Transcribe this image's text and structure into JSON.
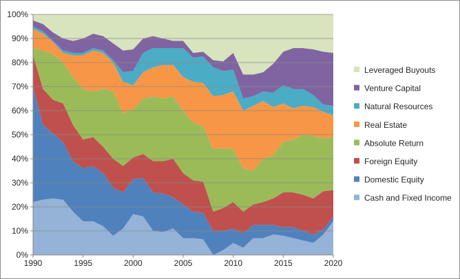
{
  "chart_data": {
    "type": "area",
    "stacked": true,
    "normalized": true,
    "title": "",
    "xlabel": "",
    "ylabel": "",
    "xlim": [
      1990,
      2020
    ],
    "ylim": [
      0,
      100
    ],
    "x_ticks": [
      "1990",
      "1995",
      "2000",
      "2005",
      "2010",
      "2015",
      "2020"
    ],
    "y_ticks": [
      "0%",
      "10%",
      "20%",
      "30%",
      "40%",
      "50%",
      "60%",
      "70%",
      "80%",
      "90%",
      "100%"
    ],
    "grid": "horizontal",
    "legend_position": "right",
    "x": [
      1990,
      1991,
      1992,
      1993,
      1994,
      1995,
      1996,
      1997,
      1998,
      1999,
      2000,
      2001,
      2002,
      2003,
      2004,
      2005,
      2006,
      2007,
      2008,
      2009,
      2010,
      2011,
      2012,
      2013,
      2014,
      2015,
      2016,
      2017,
      2018,
      2019,
      2020
    ],
    "series": [
      {
        "name": "Cash and Fixed Income",
        "color": "#95b3d7",
        "values": [
          22,
          23,
          23.5,
          23,
          18,
          14,
          14,
          12,
          8,
          11,
          17,
          16,
          10,
          9.5,
          11,
          7,
          7,
          6.5,
          0,
          2,
          5,
          3,
          7,
          7,
          8.5,
          8,
          7,
          6,
          5,
          8.5,
          14
        ]
      },
      {
        "name": "Domestic Equity",
        "color": "#4f81bd",
        "values": [
          48,
          31,
          27,
          24,
          21,
          22,
          23,
          22,
          20,
          15,
          14.5,
          16,
          16,
          16,
          13,
          14,
          11,
          11,
          10,
          8,
          6,
          6,
          5.5,
          5.5,
          4,
          3.5,
          4.5,
          4,
          3.5,
          2,
          2
        ]
      },
      {
        "name": "Foreign Equity",
        "color": "#c0504d",
        "values": [
          13,
          15,
          14,
          16,
          15,
          12,
          12,
          11,
          12,
          11,
          9,
          10,
          13,
          13.5,
          16,
          13,
          13,
          13,
          8,
          9.5,
          11,
          9,
          8.5,
          9.5,
          11,
          14.5,
          14.5,
          15,
          15,
          16,
          11
        ]
      },
      {
        "name": "Absolute Return",
        "color": "#9bbb59",
        "values": [
          3,
          16,
          19,
          17,
          20,
          21,
          19,
          24,
          28,
          22,
          20,
          23,
          27,
          26,
          26,
          26,
          24,
          23,
          26,
          25,
          22,
          18,
          14,
          18,
          18,
          21,
          22,
          25,
          26,
          22,
          22
        ]
      },
      {
        "name": "Real Estate",
        "color": "#f79646",
        "values": [
          8,
          7,
          5,
          4,
          9,
          14,
          17,
          15,
          12,
          13,
          10,
          11,
          12,
          14,
          13,
          14,
          17,
          18,
          22,
          22,
          24,
          24,
          27,
          24,
          20,
          16,
          13,
          12,
          12,
          11,
          9
        ]
      },
      {
        "name": "Natural Resources",
        "color": "#4bacc6",
        "values": [
          1,
          1,
          0.5,
          1,
          1,
          1,
          1,
          1,
          1,
          4,
          6,
          8,
          8,
          7,
          7,
          12,
          10,
          11,
          12,
          10,
          9,
          5,
          4,
          4,
          6,
          7.5,
          8,
          7,
          5,
          3,
          4
        ]
      },
      {
        "name": "Venture Capital",
        "color": "#8064a2",
        "values": [
          2.5,
          3,
          3.5,
          5,
          5,
          6,
          6,
          6,
          7,
          9,
          9,
          6,
          5,
          4,
          3,
          3,
          2,
          2,
          3,
          4,
          7,
          10,
          9,
          8,
          12,
          14,
          17,
          17,
          19,
          22,
          22
        ]
      },
      {
        "name": "Leveraged Buyouts",
        "color": "#d7e4bd",
        "values": [
          2.5,
          4,
          7.5,
          10,
          11,
          10,
          8,
          9,
          12,
          15,
          14.5,
          10,
          9,
          10,
          11,
          11,
          16,
          15.5,
          19,
          19.5,
          16,
          25,
          25,
          24,
          20.5,
          15.5,
          14,
          14,
          14.5,
          15.5,
          16
        ]
      }
    ]
  }
}
